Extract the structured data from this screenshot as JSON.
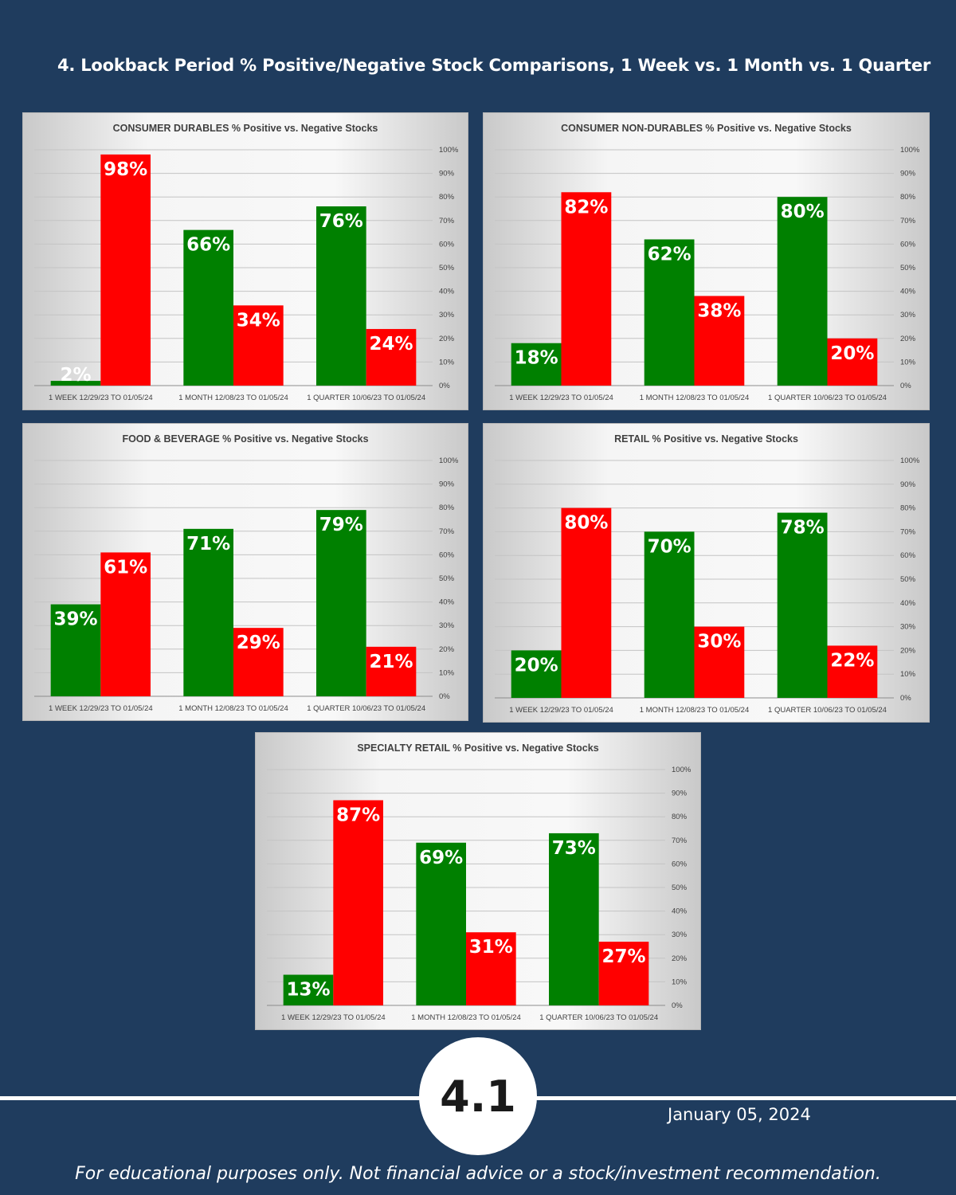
{
  "page": {
    "title": "4. Lookback Period % Positive/Negative Stock Comparisons, 1 Week vs. 1 Month vs. 1 Quarter",
    "page_number": "4.1",
    "date": "January 05, 2024",
    "disclaimer": "For educational purposes only. Not financial advice or a stock/investment recommendation.",
    "colors": {
      "background": "#1f3c5e",
      "positive": "#008000",
      "negative": "#ff0000"
    }
  },
  "chart_data": [
    {
      "type": "bar",
      "title": "CONSUMER DURABLES % Positive vs. Negative Stocks",
      "categories": [
        "1 WEEK 12/29/23 TO 01/05/24",
        "1 MONTH 12/08/23 TO 01/05/24",
        "1 QUARTER 10/06/23 TO 01/05/24"
      ],
      "series": [
        {
          "values": [
            2,
            66,
            76
          ],
          "color": "#008000"
        },
        {
          "values": [
            98,
            34,
            24
          ],
          "color": "#ff0000"
        }
      ],
      "ylim": [
        0,
        100
      ],
      "yticks": [
        "0%",
        "10%",
        "20%",
        "30%",
        "40%",
        "50%",
        "60%",
        "70%",
        "80%",
        "90%",
        "100%"
      ],
      "grid": true
    },
    {
      "type": "bar",
      "title": "CONSUMER NON-DURABLES % Positive vs. Negative Stocks",
      "categories": [
        "1 WEEK 12/29/23 TO 01/05/24",
        "1 MONTH 12/08/23 TO 01/05/24",
        "1 QUARTER 10/06/23 TO 01/05/24"
      ],
      "series": [
        {
          "values": [
            18,
            62,
            80
          ],
          "color": "#008000"
        },
        {
          "values": [
            82,
            38,
            20
          ],
          "color": "#ff0000"
        }
      ],
      "ylim": [
        0,
        100
      ],
      "yticks": [
        "0%",
        "10%",
        "20%",
        "30%",
        "40%",
        "50%",
        "60%",
        "70%",
        "80%",
        "90%",
        "100%"
      ],
      "grid": true
    },
    {
      "type": "bar",
      "title": "FOOD & BEVERAGE % Positive vs. Negative Stocks",
      "categories": [
        "1 WEEK 12/29/23 TO 01/05/24",
        "1 MONTH 12/08/23 TO 01/05/24",
        "1 QUARTER 10/06/23 TO 01/05/24"
      ],
      "series": [
        {
          "values": [
            39,
            71,
            79
          ],
          "color": "#008000"
        },
        {
          "values": [
            61,
            29,
            21
          ],
          "color": "#ff0000"
        }
      ],
      "ylim": [
        0,
        100
      ],
      "yticks": [
        "0%",
        "10%",
        "20%",
        "30%",
        "40%",
        "50%",
        "60%",
        "70%",
        "80%",
        "90%",
        "100%"
      ],
      "grid": true
    },
    {
      "type": "bar",
      "title": "RETAIL % Positive vs. Negative Stocks",
      "categories": [
        "1 WEEK 12/29/23 TO 01/05/24",
        "1 MONTH 12/08/23 TO 01/05/24",
        "1 QUARTER 10/06/23 TO 01/05/24"
      ],
      "series": [
        {
          "values": [
            20,
            70,
            78
          ],
          "color": "#008000"
        },
        {
          "values": [
            80,
            30,
            22
          ],
          "color": "#ff0000"
        }
      ],
      "ylim": [
        0,
        100
      ],
      "yticks": [
        "0%",
        "10%",
        "20%",
        "30%",
        "40%",
        "50%",
        "60%",
        "70%",
        "80%",
        "90%",
        "100%"
      ],
      "grid": true
    },
    {
      "type": "bar",
      "title": "SPECIALTY RETAIL % Positive vs. Negative Stocks",
      "categories": [
        "1 WEEK 12/29/23 TO 01/05/24",
        "1 MONTH 12/08/23 TO 01/05/24",
        "1 QUARTER 10/06/23 TO 01/05/24"
      ],
      "series": [
        {
          "values": [
            13,
            69,
            73
          ],
          "color": "#008000"
        },
        {
          "values": [
            87,
            31,
            27
          ],
          "color": "#ff0000"
        }
      ],
      "ylim": [
        0,
        100
      ],
      "yticks": [
        "0%",
        "10%",
        "20%",
        "30%",
        "40%",
        "50%",
        "60%",
        "70%",
        "80%",
        "90%",
        "100%"
      ],
      "grid": true
    }
  ]
}
